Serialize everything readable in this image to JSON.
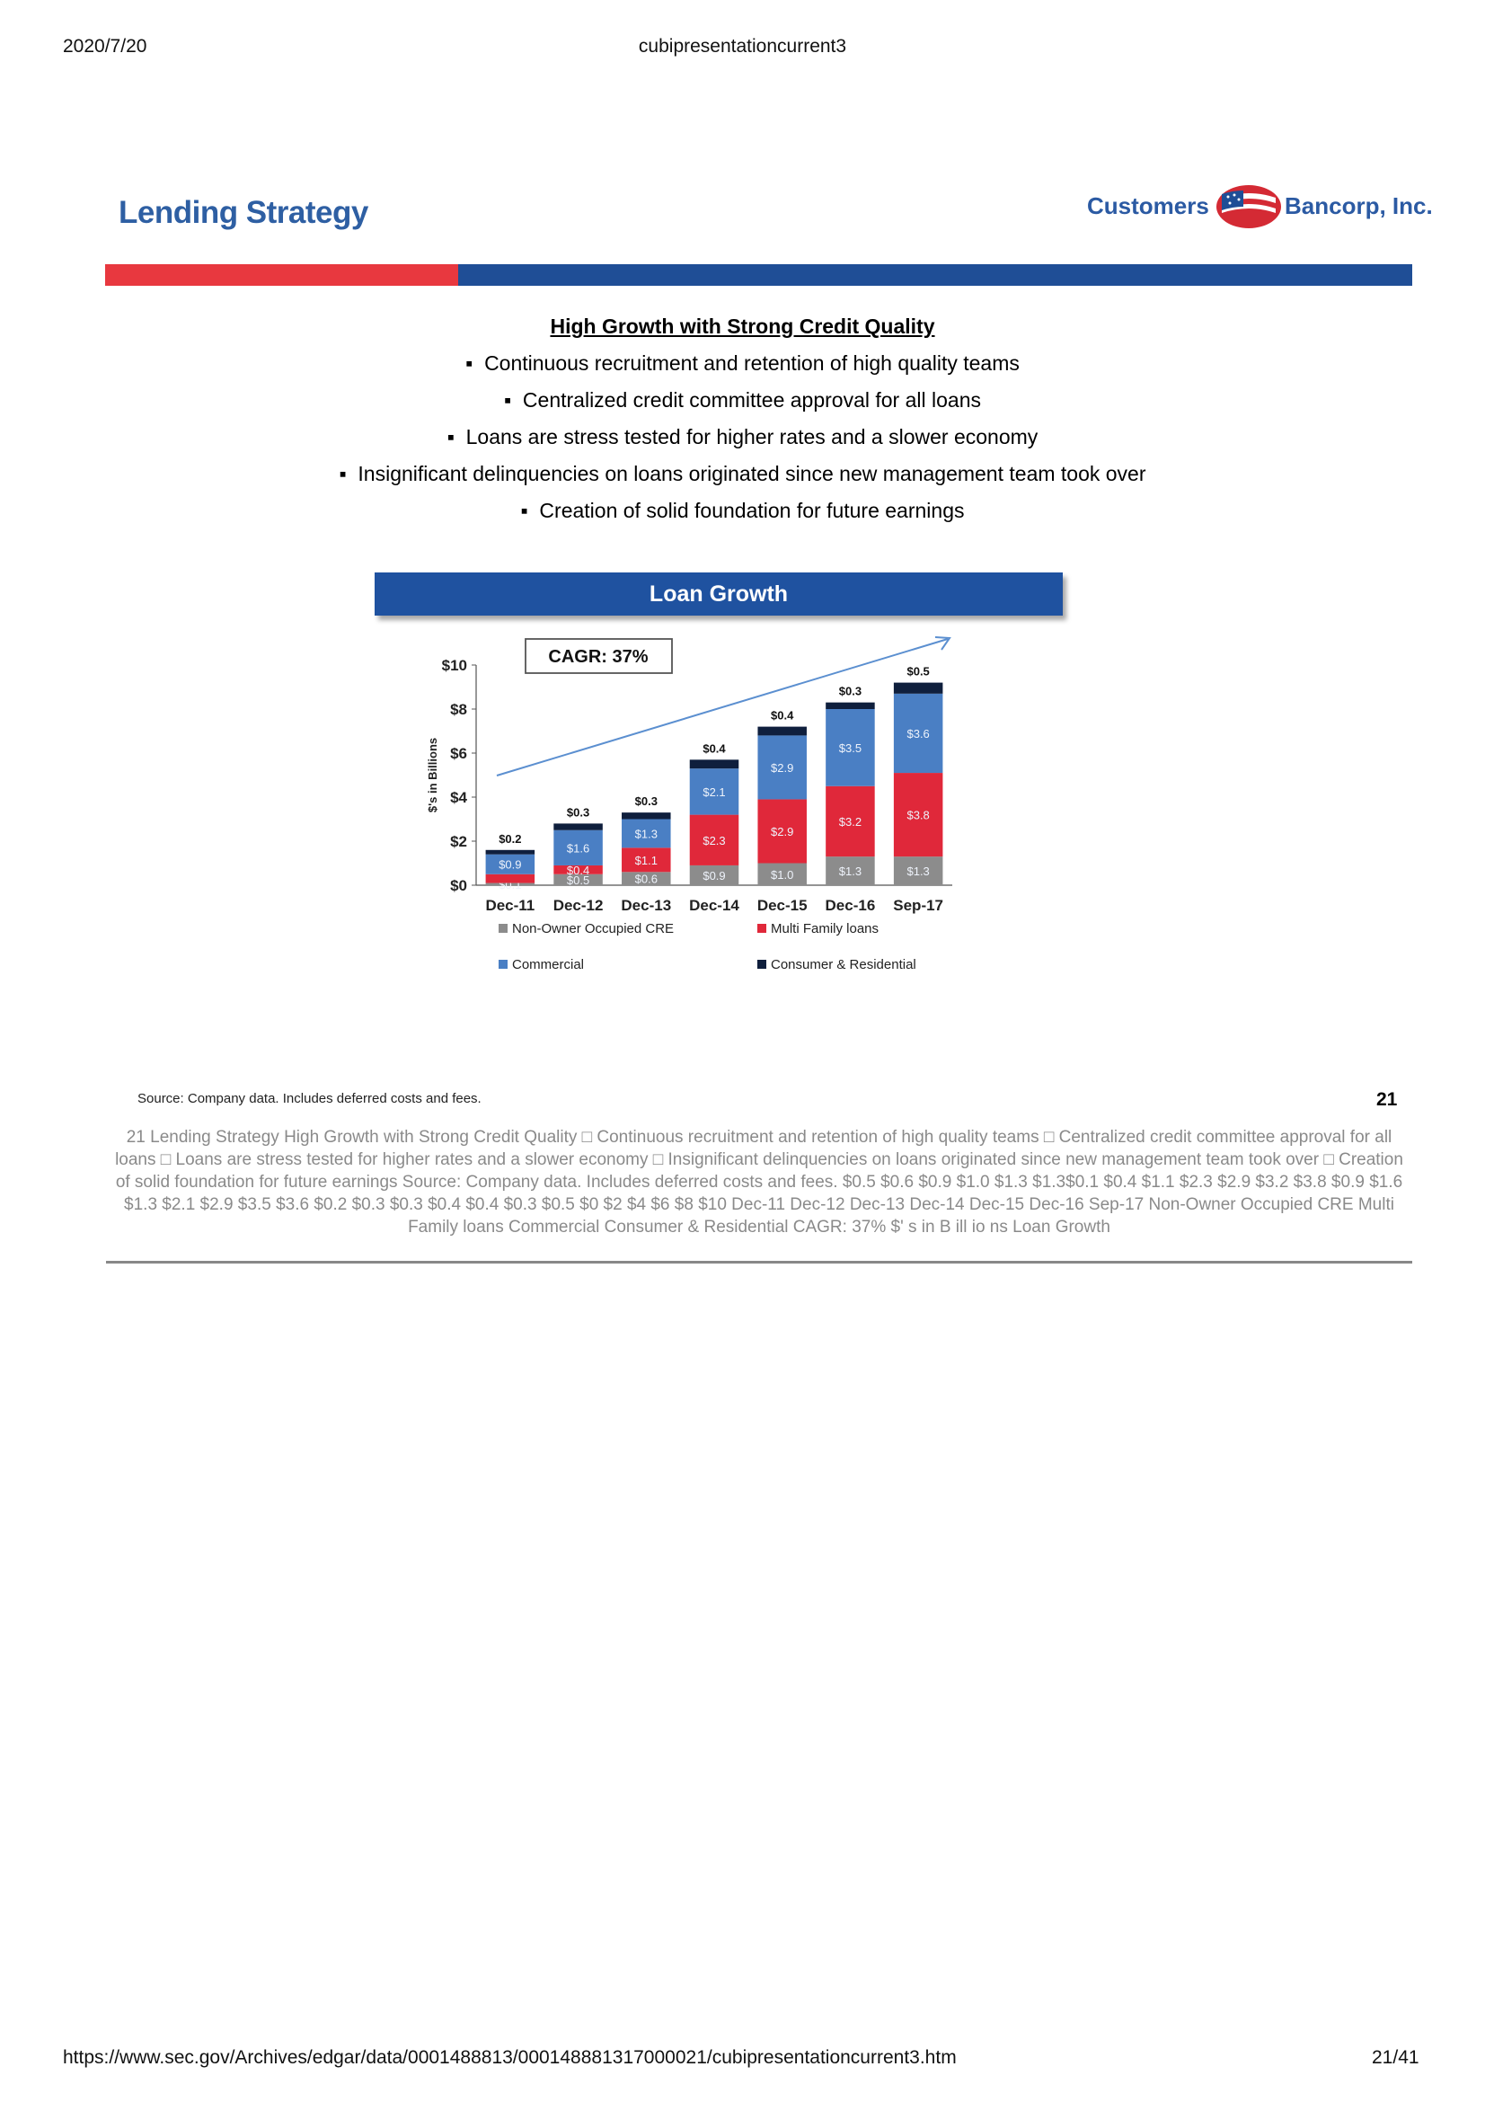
{
  "header": {
    "date": "2020/7/20",
    "doc_title": "cubipresentationcurrent3"
  },
  "slide": {
    "title": "Lending Strategy",
    "logo_left": "Customers",
    "logo_right": "Bancorp, Inc.",
    "subheading": "High Growth with Strong Credit Quality",
    "bullets": [
      "Continuous recruitment and retention of high quality teams",
      "Centralized credit committee approval for all loans",
      "Loans are stress tested for higher rates and a slower economy",
      "Insignificant delinquencies on loans originated since new management team took over",
      "Creation of solid foundation for future earnings"
    ],
    "source_note": "Source: Company data.  Includes deferred costs and fees.",
    "page_number": "21"
  },
  "chart_data": {
    "type": "bar",
    "stacked": true,
    "title": "Loan Growth",
    "annotation": "CAGR:  37%",
    "ylabel": "$'s in Billions",
    "ylim": [
      0,
      10
    ],
    "yticks": [
      "$0",
      "$2",
      "$4",
      "$6",
      "$8",
      "$10"
    ],
    "categories": [
      "Dec-11",
      "Dec-12",
      "Dec-13",
      "Dec-14",
      "Dec-15",
      "Dec-16",
      "Sep-17"
    ],
    "series": [
      {
        "name": "Non-Owner Occupied CRE",
        "color": "#8c8c8c",
        "values": [
          0.1,
          0.5,
          0.6,
          0.9,
          1.0,
          1.3,
          1.3
        ],
        "labels": [
          "$0.1",
          "$0.5",
          "$0.6",
          "$0.9",
          "$1.0",
          "$1.3",
          "$1.3"
        ]
      },
      {
        "name": "Multi Family loans",
        "color": "#e0283a",
        "values": [
          0.4,
          0.4,
          1.1,
          2.3,
          2.9,
          3.2,
          3.8
        ],
        "labels": [
          "",
          "$0.4",
          "$1.1",
          "$2.3",
          "$2.9",
          "$3.2",
          "$3.8"
        ]
      },
      {
        "name": "Commercial",
        "color": "#4a7fc4",
        "values": [
          0.9,
          1.6,
          1.3,
          2.1,
          2.9,
          3.5,
          3.6
        ],
        "labels": [
          "$0.9",
          "$1.6",
          "$1.3",
          "$2.1",
          "$2.9",
          "$3.5",
          "$3.6"
        ]
      },
      {
        "name": "Consumer & Residential",
        "color": "#0f1f3d",
        "values": [
          0.2,
          0.3,
          0.3,
          0.4,
          0.4,
          0.3,
          0.5
        ],
        "labels": [
          "$0.2",
          "$0.3",
          "$0.3",
          "$0.4",
          "$0.4",
          "$0.3",
          "$0.5"
        ]
      }
    ],
    "legend": "bottom",
    "grid": false
  },
  "alt_text": "21  Lending Strategy  High Growth with Strong Credit Quality  □ Continuous recruitment and retention of high quality teams  □ Centralized credit committee approval for all loans  □ Loans are stress tested for higher rates and a slower economy  □ Insignificant delinquencies on loans originated since new management team took over  □ Creation of solid foundation for future earnings    Source: Company data. Includes deferred costs and fees.  $0.5 $0.6 $0.9 $1.0 $1.3 $1.3$0.1 $0.4 $1.1 $2.3 $2.9 $3.2 $3.8 $0.9 $1.6 $1.3 $2.1 $2.9 $3.5 $3.6 $0.2 $0.3 $0.3 $0.4 $0.4 $0.3 $0.5 $0 $2 $4 $6 $8 $10 Dec-11 Dec-12 Dec-13 Dec-14 Dec-15 Dec-16 Sep-17 Non-Owner Occupied CRE Multi Family loans Commercial Consumer & Residential CAGR: 37% $' s in B ill io ns Loan Growth",
  "footer": {
    "url": "https://www.sec.gov/Archives/edgar/data/0001488813/000148881317000021/cubipresentationcurrent3.htm",
    "page": "21/41"
  }
}
